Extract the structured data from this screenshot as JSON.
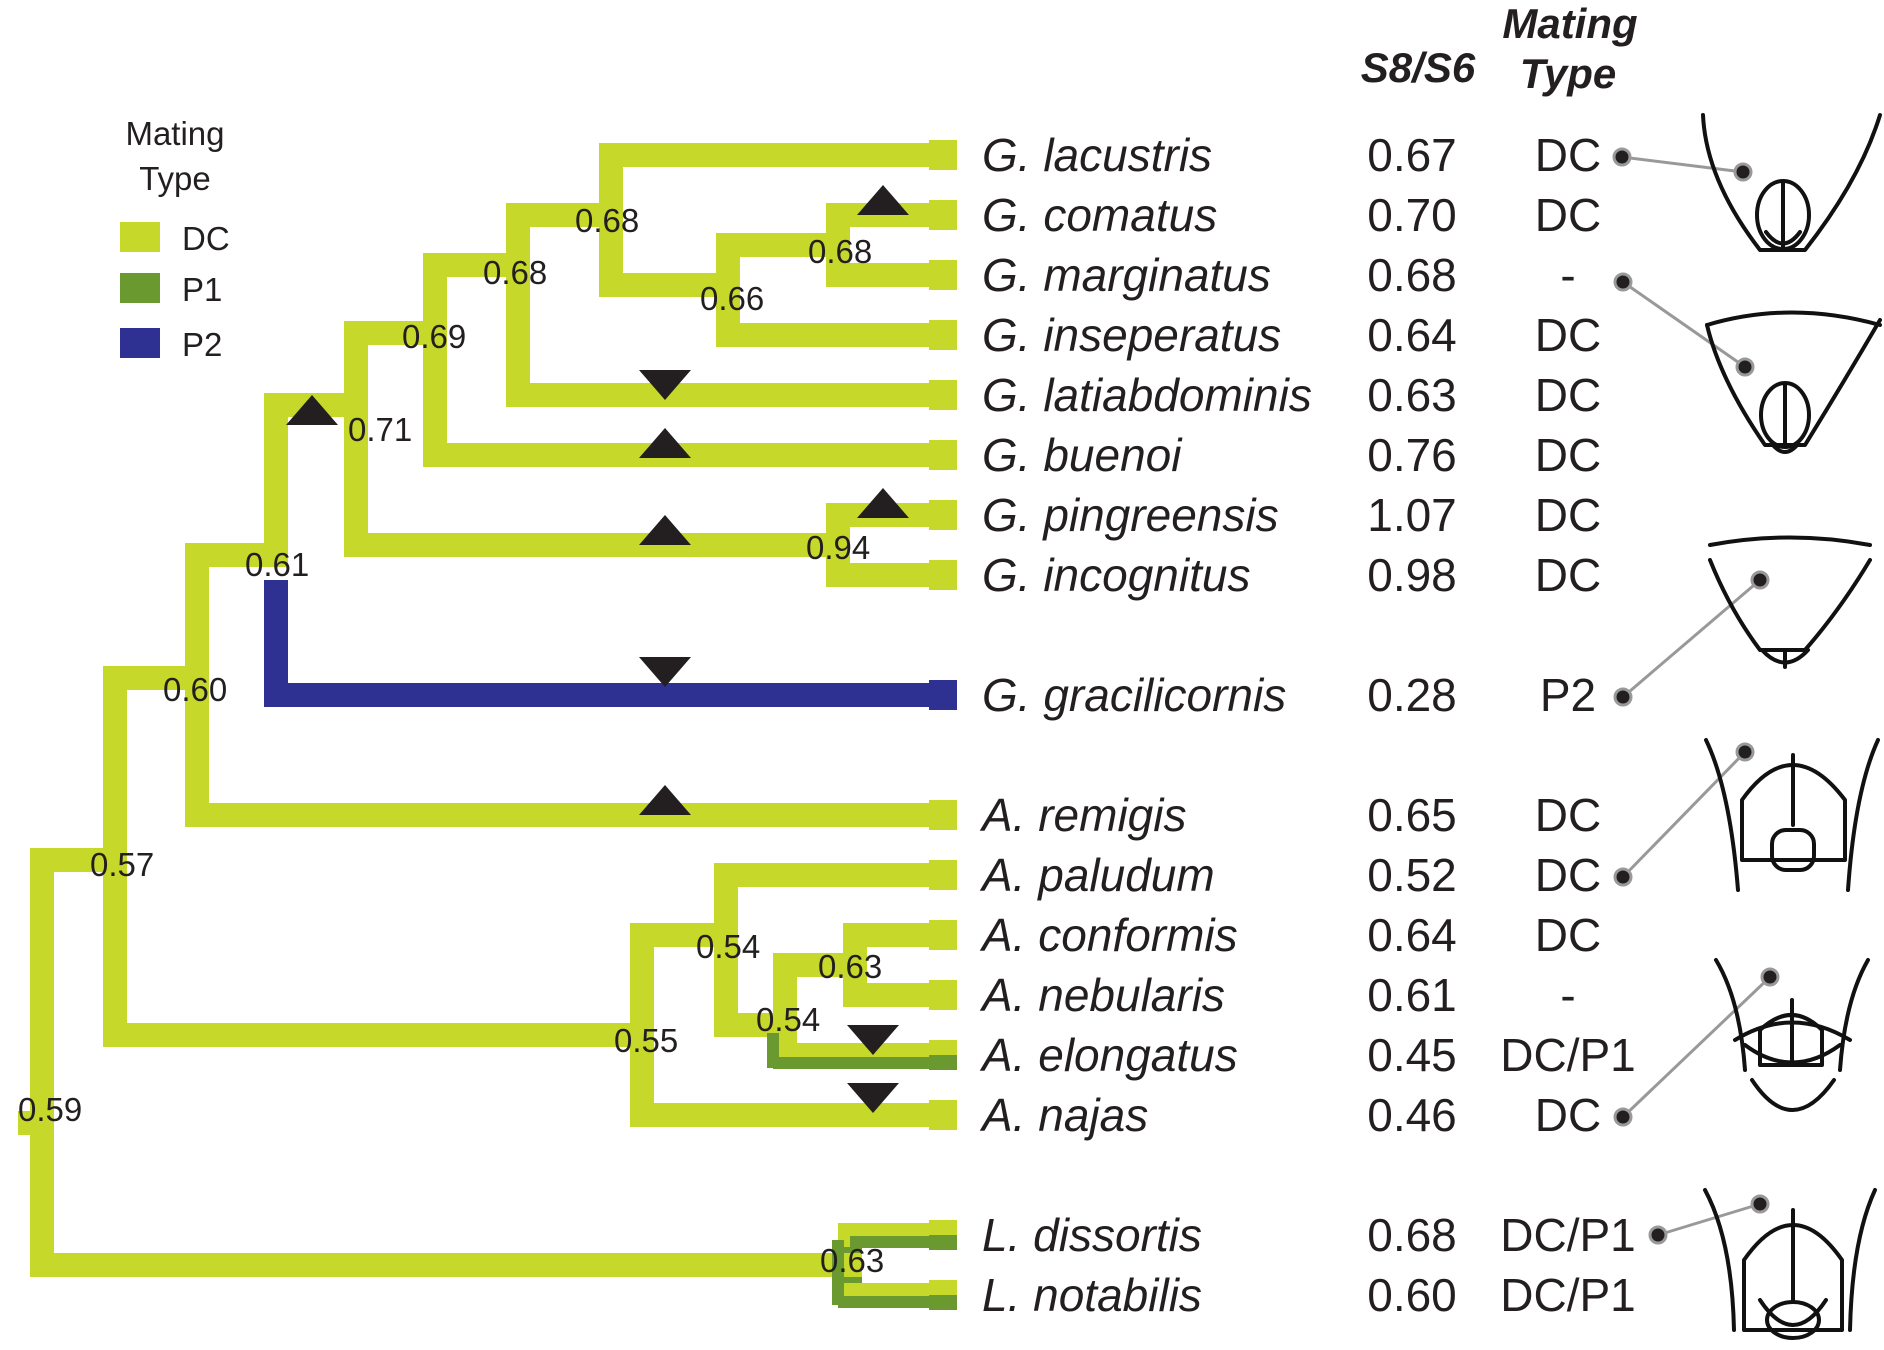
{
  "headers": {
    "ratio": "S8/S6",
    "mating_line1": "Mating",
    "mating_line2": "Type"
  },
  "legend": {
    "title_line1": "Mating",
    "title_line2": "Type",
    "items": [
      {
        "label": "DC",
        "color": "#c6d92b"
      },
      {
        "label": "P1",
        "color": "#6a9a2f"
      },
      {
        "label": "P2",
        "color": "#2e3192"
      }
    ]
  },
  "colors": {
    "DC": "#c6d92b",
    "P1": "#6a9a2f",
    "P2": "#2e3192",
    "marker": "#231f20",
    "leader": "#999999"
  },
  "taxa": [
    {
      "name": "G. lacustris",
      "ratio": "0.67",
      "mating": "DC",
      "type": "DC"
    },
    {
      "name": "G. comatus",
      "ratio": "0.70",
      "mating": "DC",
      "type": "DC"
    },
    {
      "name": "G. marginatus",
      "ratio": "0.68",
      "mating": "-",
      "type": "DC"
    },
    {
      "name": "G. inseperatus",
      "ratio": "0.64",
      "mating": "DC",
      "type": "DC"
    },
    {
      "name": "G. latiabdominis",
      "ratio": "0.63",
      "mating": "DC",
      "type": "DC"
    },
    {
      "name": "G. buenoi",
      "ratio": "0.76",
      "mating": "DC",
      "type": "DC"
    },
    {
      "name": "G. pingreensis",
      "ratio": "1.07",
      "mating": "DC",
      "type": "DC"
    },
    {
      "name": "G. incognitus",
      "ratio": "0.98",
      "mating": "DC",
      "type": "DC"
    },
    {
      "name": "G. gracilicornis",
      "ratio": "0.28",
      "mating": "P2",
      "type": "P2"
    },
    {
      "name": "A. remigis",
      "ratio": "0.65",
      "mating": "DC",
      "type": "DC"
    },
    {
      "name": "A. paludum",
      "ratio": "0.52",
      "mating": "DC",
      "type": "DC"
    },
    {
      "name": "A. conformis",
      "ratio": "0.64",
      "mating": "DC",
      "type": "DC"
    },
    {
      "name": "A. nebularis",
      "ratio": "0.61",
      "mating": "-",
      "type": "DC"
    },
    {
      "name": "A. elongatus",
      "ratio": "0.45",
      "mating": "DC/P1",
      "type": "P1"
    },
    {
      "name": "A. najas",
      "ratio": "0.46",
      "mating": "DC",
      "type": "DC"
    },
    {
      "name": "L. dissortis",
      "ratio": "0.68",
      "mating": "DC/P1",
      "type": "P1"
    },
    {
      "name": "L. notabilis",
      "ratio": "0.60",
      "mating": "DC/P1",
      "type": "P1"
    }
  ],
  "nodes": [
    {
      "id": "root",
      "value": "0.59"
    },
    {
      "id": "gerris-aquarius",
      "value": "0.57"
    },
    {
      "id": "gerris-remigis",
      "value": "0.60"
    },
    {
      "id": "gerris-core",
      "value": "0.61"
    },
    {
      "id": "gerris-dc-clade",
      "value": "0.71"
    },
    {
      "id": "gerris-buenoi-clade",
      "value": "0.69"
    },
    {
      "id": "gerris-latiabdominis-clade",
      "value": "0.68"
    },
    {
      "id": "gerris-lacustris-clade",
      "value": "0.68"
    },
    {
      "id": "gerris-inseperatus-clade",
      "value": "0.66"
    },
    {
      "id": "comatus-marginatus",
      "value": "0.68"
    },
    {
      "id": "pingreensis-incognitus",
      "value": "0.94"
    },
    {
      "id": "aquarius-clade",
      "value": "0.55"
    },
    {
      "id": "aquarius-paludum-clade",
      "value": "0.54"
    },
    {
      "id": "aquarius-conformis-clade",
      "value": "0.54"
    },
    {
      "id": "conformis-nebularis",
      "value": "0.63"
    },
    {
      "id": "limnoporus",
      "value": "0.63"
    }
  ],
  "shifts": [
    {
      "branch": "G. comatus",
      "direction": "up"
    },
    {
      "branch": "G. latiabdominis",
      "direction": "down"
    },
    {
      "branch": "G. buenoi",
      "direction": "up"
    },
    {
      "branch": "pingreensis-incognitus",
      "direction": "up"
    },
    {
      "branch": "G. pingreensis",
      "direction": "up"
    },
    {
      "branch": "gerris-dc-clade",
      "direction": "up"
    },
    {
      "branch": "G. gracilicornis",
      "direction": "down"
    },
    {
      "branch": "A. remigis",
      "direction": "up"
    },
    {
      "branch": "A. elongatus",
      "direction": "down"
    },
    {
      "branch": "A. najas",
      "direction": "down"
    }
  ]
}
